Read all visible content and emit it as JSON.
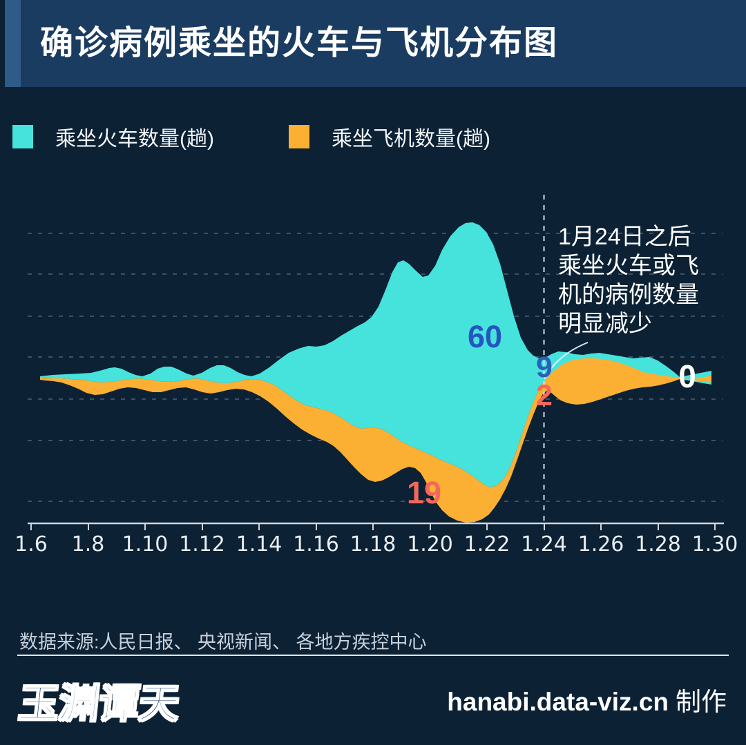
{
  "title": "确诊病例乘坐的火车与飞机分布图",
  "legend": {
    "train": {
      "label": "乘坐火车数量(趟)",
      "color": "#45e3db"
    },
    "plane": {
      "label": "乘坐飞机数量(趟)",
      "color": "#fbb034"
    }
  },
  "annotation": {
    "line1": "1月24日之后",
    "line2": "乘坐火车或飞",
    "line3": "机的病例数量",
    "line4": "明显减少"
  },
  "footer": {
    "source": "数据来源:人民日报、 央视新闻、 各地方疾控中心"
  },
  "credit": {
    "site": "hanabi.data-viz.cn",
    "suffix": "制作"
  },
  "logo_text": "玉渊谭天",
  "colors": {
    "background": "#0c2134",
    "title_bar": "#1a3c61",
    "accent_stripe": "#2f5b88",
    "train_area": "#45e3db",
    "plane_area": "#fbb034",
    "train_label": "#2b5abf",
    "plane_label": "#f2685c",
    "axis": "#cdd7e0"
  },
  "chart_data": {
    "type": "area",
    "variant": "streamgraph",
    "title": "确诊病例乘坐的火车与飞机分布图",
    "xlabel": "",
    "ylabel": "",
    "grid": "dashed horizontal gridlines, dashed vertical cutoff line at 1.24",
    "legend_position": "top-left",
    "x": [
      "1.6",
      "1.7",
      "1.8",
      "1.9",
      "1.10",
      "1.11",
      "1.12",
      "1.13",
      "1.14",
      "1.15",
      "1.16",
      "1.17",
      "1.18",
      "1.19",
      "1.20",
      "1.21",
      "1.22",
      "1.23",
      "1.24",
      "1.25",
      "1.26",
      "1.27",
      "1.28",
      "1.29",
      "1.30"
    ],
    "x_tick_labels": [
      "1.6",
      "1.8",
      "1.10",
      "1.12",
      "1.14",
      "1.16",
      "1.18",
      "1.20",
      "1.22",
      "1.24",
      "1.26",
      "1.28",
      "1.30"
    ],
    "series": [
      {
        "name": "乘坐火车数量(趟)",
        "color": "#45e3db",
        "orientation": "above baseline",
        "values": [
          1,
          1,
          2,
          2,
          2,
          3,
          2,
          3,
          5,
          8,
          12,
          20,
          35,
          42,
          38,
          60,
          48,
          20,
          9,
          7,
          6,
          5,
          4,
          2,
          0
        ]
      },
      {
        "name": "乘坐飞机数量(趟)",
        "color": "#fbb034",
        "orientation": "below baseline",
        "values": [
          1,
          1,
          1,
          1,
          1,
          1,
          1,
          1,
          2,
          3,
          5,
          8,
          11,
          13,
          12,
          19,
          16,
          8,
          2,
          3,
          4,
          3,
          3,
          1,
          0
        ]
      }
    ],
    "annotations": {
      "cutoff_x": "1.24",
      "train_peak": 60,
      "plane_peak": 19,
      "train_at_cutoff": 9,
      "plane_at_cutoff": 2,
      "end_value": 0
    }
  }
}
